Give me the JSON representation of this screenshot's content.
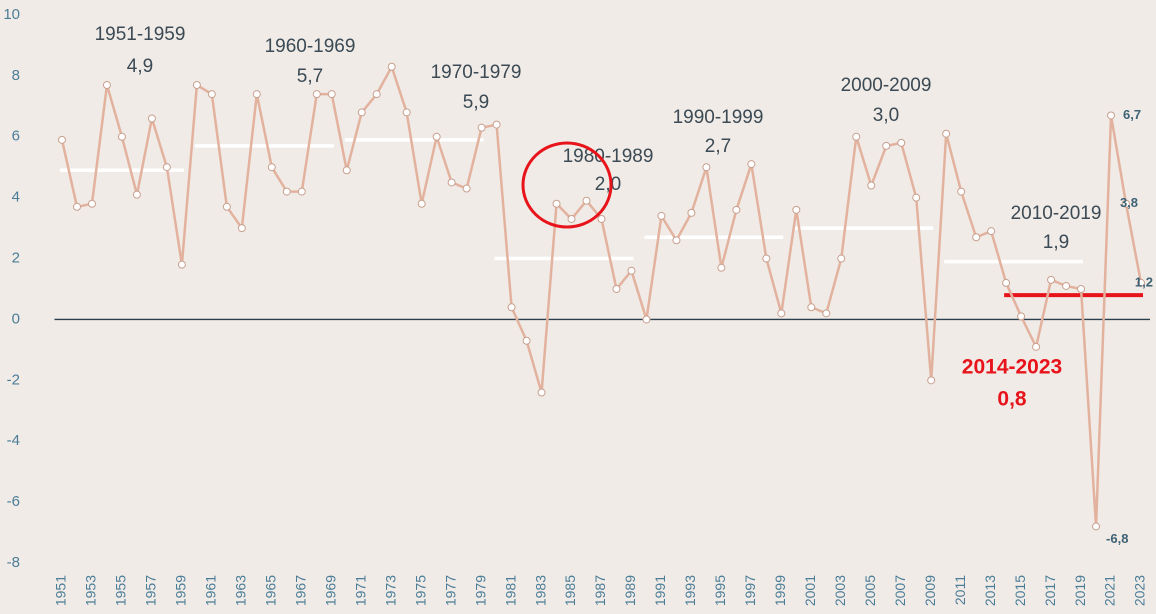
{
  "chart_data": {
    "type": "line",
    "x": [
      1951,
      1952,
      1953,
      1954,
      1955,
      1956,
      1957,
      1958,
      1959,
      1960,
      1961,
      1962,
      1963,
      1964,
      1965,
      1966,
      1967,
      1968,
      1969,
      1970,
      1971,
      1972,
      1973,
      1974,
      1975,
      1976,
      1977,
      1978,
      1979,
      1980,
      1981,
      1982,
      1983,
      1984,
      1985,
      1986,
      1987,
      1988,
      1989,
      1990,
      1991,
      1992,
      1993,
      1994,
      1995,
      1996,
      1997,
      1998,
      1999,
      2000,
      2001,
      2002,
      2003,
      2004,
      2005,
      2006,
      2007,
      2008,
      2009,
      2010,
      2011,
      2012,
      2013,
      2014,
      2015,
      2016,
      2017,
      2018,
      2019,
      2020,
      2021,
      2022,
      2023
    ],
    "series": [
      {
        "color": "#e2b29e",
        "values": [
          5.9,
          3.7,
          3.8,
          7.7,
          6.0,
          4.1,
          6.6,
          5.0,
          1.8,
          7.7,
          7.4,
          3.7,
          3.0,
          7.4,
          5.0,
          4.2,
          4.2,
          7.4,
          7.4,
          4.9,
          6.8,
          7.4,
          8.3,
          6.8,
          3.8,
          6.0,
          4.5,
          4.3,
          6.3,
          6.4,
          0.4,
          -0.7,
          -2.4,
          3.8,
          3.3,
          3.9,
          3.3,
          1.0,
          1.6,
          0.0,
          3.4,
          2.6,
          3.5,
          5.0,
          1.7,
          3.6,
          5.1,
          2.0,
          0.2,
          3.6,
          0.4,
          0.2,
          2.0,
          6.0,
          4.4,
          5.7,
          5.8,
          4.0,
          -2.0,
          6.1,
          4.2,
          2.7,
          2.9,
          1.2,
          0.1,
          -0.9,
          1.3,
          1.1,
          1.0,
          -6.8,
          6.7,
          3.8,
          1.2
        ],
        "value_labels": [
          null,
          null,
          null,
          null,
          null,
          null,
          null,
          null,
          null,
          null,
          null,
          null,
          null,
          null,
          null,
          null,
          null,
          null,
          null,
          null,
          null,
          null,
          null,
          null,
          null,
          null,
          null,
          null,
          null,
          null,
          null,
          null,
          null,
          null,
          null,
          null,
          null,
          null,
          null,
          null,
          null,
          null,
          null,
          null,
          null,
          null,
          null,
          null,
          null,
          null,
          null,
          null,
          null,
          null,
          null,
          null,
          null,
          null,
          null,
          null,
          null,
          null,
          null,
          null,
          null,
          null,
          null,
          null,
          null,
          "-6,8",
          "6,7",
          "3,8",
          "1,2"
        ]
      }
    ],
    "xlim": [
      1950.5,
      2023.6
    ],
    "xticks": [
      1951,
      1953,
      1955,
      1957,
      1959,
      1961,
      1963,
      1965,
      1967,
      1969,
      1971,
      1973,
      1975,
      1977,
      1979,
      1981,
      1983,
      1985,
      1987,
      1989,
      1991,
      1993,
      1995,
      1997,
      1999,
      2001,
      2003,
      2005,
      2007,
      2009,
      2011,
      2013,
      2015,
      2017,
      2019,
      2021,
      2023
    ],
    "ylim": [
      -8,
      10
    ],
    "yticks": [
      -8,
      -6,
      -4,
      -2,
      0,
      2,
      4,
      6,
      8,
      10
    ],
    "averages": [
      {
        "period": "1951-1959",
        "value": 4.9,
        "value_label": "4,9",
        "x": [
          1951,
          1959
        ],
        "color": "#ffffff"
      },
      {
        "period": "1960-1969",
        "value": 5.7,
        "value_label": "5,7",
        "x": [
          1960,
          1969
        ],
        "color": "#ffffff"
      },
      {
        "period": "1970-1979",
        "value": 5.9,
        "value_label": "5,9",
        "x": [
          1970,
          1979
        ],
        "color": "#ffffff"
      },
      {
        "period": "1980-1989",
        "value": 2.0,
        "value_label": "2,0",
        "x": [
          1980,
          1989
        ],
        "color": "#ffffff"
      },
      {
        "period": "1990-1999",
        "value": 2.7,
        "value_label": "2,7",
        "x": [
          1990,
          1999
        ],
        "color": "#ffffff"
      },
      {
        "period": "2000-2009",
        "value": 3.0,
        "value_label": "3,0",
        "x": [
          2000,
          2009
        ],
        "color": "#ffffff"
      },
      {
        "period": "2010-2019",
        "value": 1.9,
        "value_label": "1,9",
        "x": [
          2010,
          2019
        ],
        "color": "#ffffff"
      },
      {
        "period": "2014-2023",
        "value": 0.8,
        "value_label": "0,8",
        "x": [
          2014,
          2023
        ],
        "color": "#e8141b"
      }
    ]
  }
}
